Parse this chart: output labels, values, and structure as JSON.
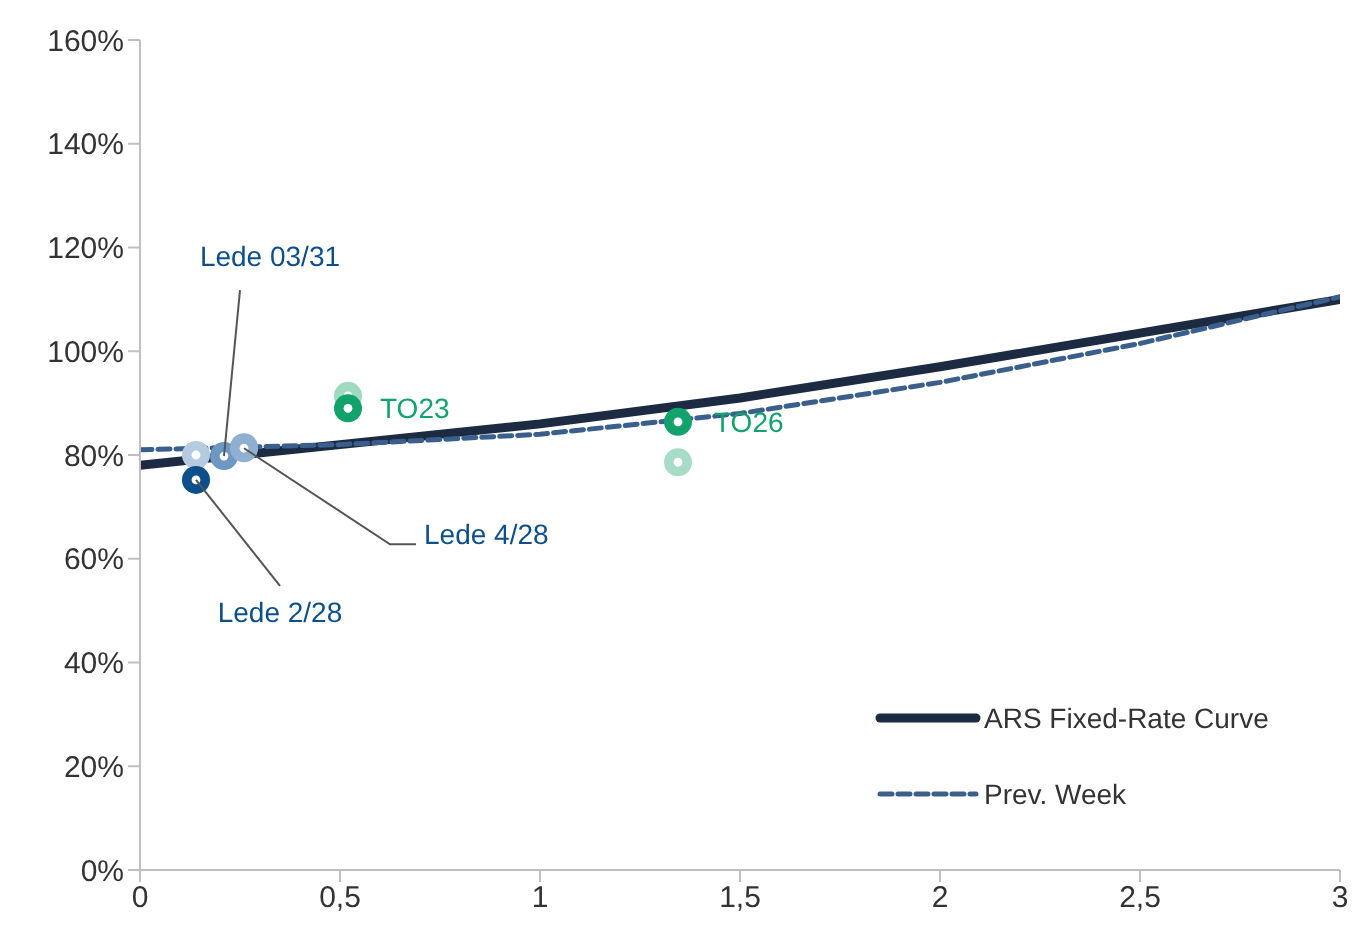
{
  "chart_data": {
    "type": "line",
    "xlim": [
      0,
      3
    ],
    "ylim": [
      0,
      160
    ],
    "xticks": [
      0,
      {
        "value": 0.5,
        "label": "0,5"
      },
      1,
      {
        "value": 1.5,
        "label": "1,5"
      },
      2,
      {
        "value": 2.5,
        "label": "2,5"
      },
      3
    ],
    "yticks": [
      {
        "value": 0,
        "label": "0%"
      },
      {
        "value": 20,
        "label": "20%"
      },
      {
        "value": 40,
        "label": "40%"
      },
      {
        "value": 60,
        "label": "60%"
      },
      {
        "value": 80,
        "label": "80%"
      },
      {
        "value": 100,
        "label": "100%"
      },
      {
        "value": 120,
        "label": "120%"
      },
      {
        "value": 140,
        "label": "140%"
      },
      {
        "value": 160,
        "label": "160%"
      }
    ],
    "legend": "bottom right",
    "series": [
      {
        "name": "ARS Fixed-Rate Curve",
        "line_style": "solid",
        "marker": "none",
        "color": "#1c2b41",
        "x": [
          0,
          0.5,
          1,
          1.5,
          2,
          2.5,
          3
        ],
        "values": [
          78,
          82,
          86,
          91,
          97,
          103.5,
          110
        ]
      },
      {
        "name": "Prev. Week",
        "line_style": "dashed",
        "marker": "none",
        "color": "#3b5f8c",
        "x": [
          0,
          0.5,
          1,
          1.5,
          2,
          2.5,
          3
        ],
        "values": [
          81,
          82,
          84,
          88,
          94,
          101.5,
          110.5
        ]
      },
      {
        "type": "scatter",
        "marker": "circle",
        "x": [
          0.14,
          0.21,
          0.26,
          0.52,
          1.345
        ],
        "values": [
          80,
          null,
          81.5,
          91.4,
          78.6
        ],
        "colors": [
          "#b7cbe0",
          "#9dbad6",
          "#8fb0d2",
          "#9fd9bf",
          "#a8dcc6"
        ]
      },
      {
        "type": "scatter",
        "marker": "circle",
        "x": [
          0.14,
          0.21,
          0.26,
          0.52,
          1.345
        ],
        "values": [
          75.2,
          79.8,
          81.3,
          89,
          86.4
        ],
        "colors": [
          "#0c4f8a",
          "#6d98c3",
          "#8fb0d2",
          "#12a36d",
          "#12a36d"
        ]
      }
    ],
    "annotations": [
      {
        "text": "Lede 03/31",
        "x": 0.21,
        "y": 79.8
      },
      {
        "text": "Lede 4/28",
        "x": 0.26,
        "y": 81.3
      },
      {
        "text": "Lede 2/28",
        "x": 0.14,
        "y": 75.2
      },
      {
        "text": "TO23",
        "x": 0.52,
        "y": 89
      },
      {
        "text": "TO26",
        "x": 1.345,
        "y": 86.4
      }
    ]
  }
}
